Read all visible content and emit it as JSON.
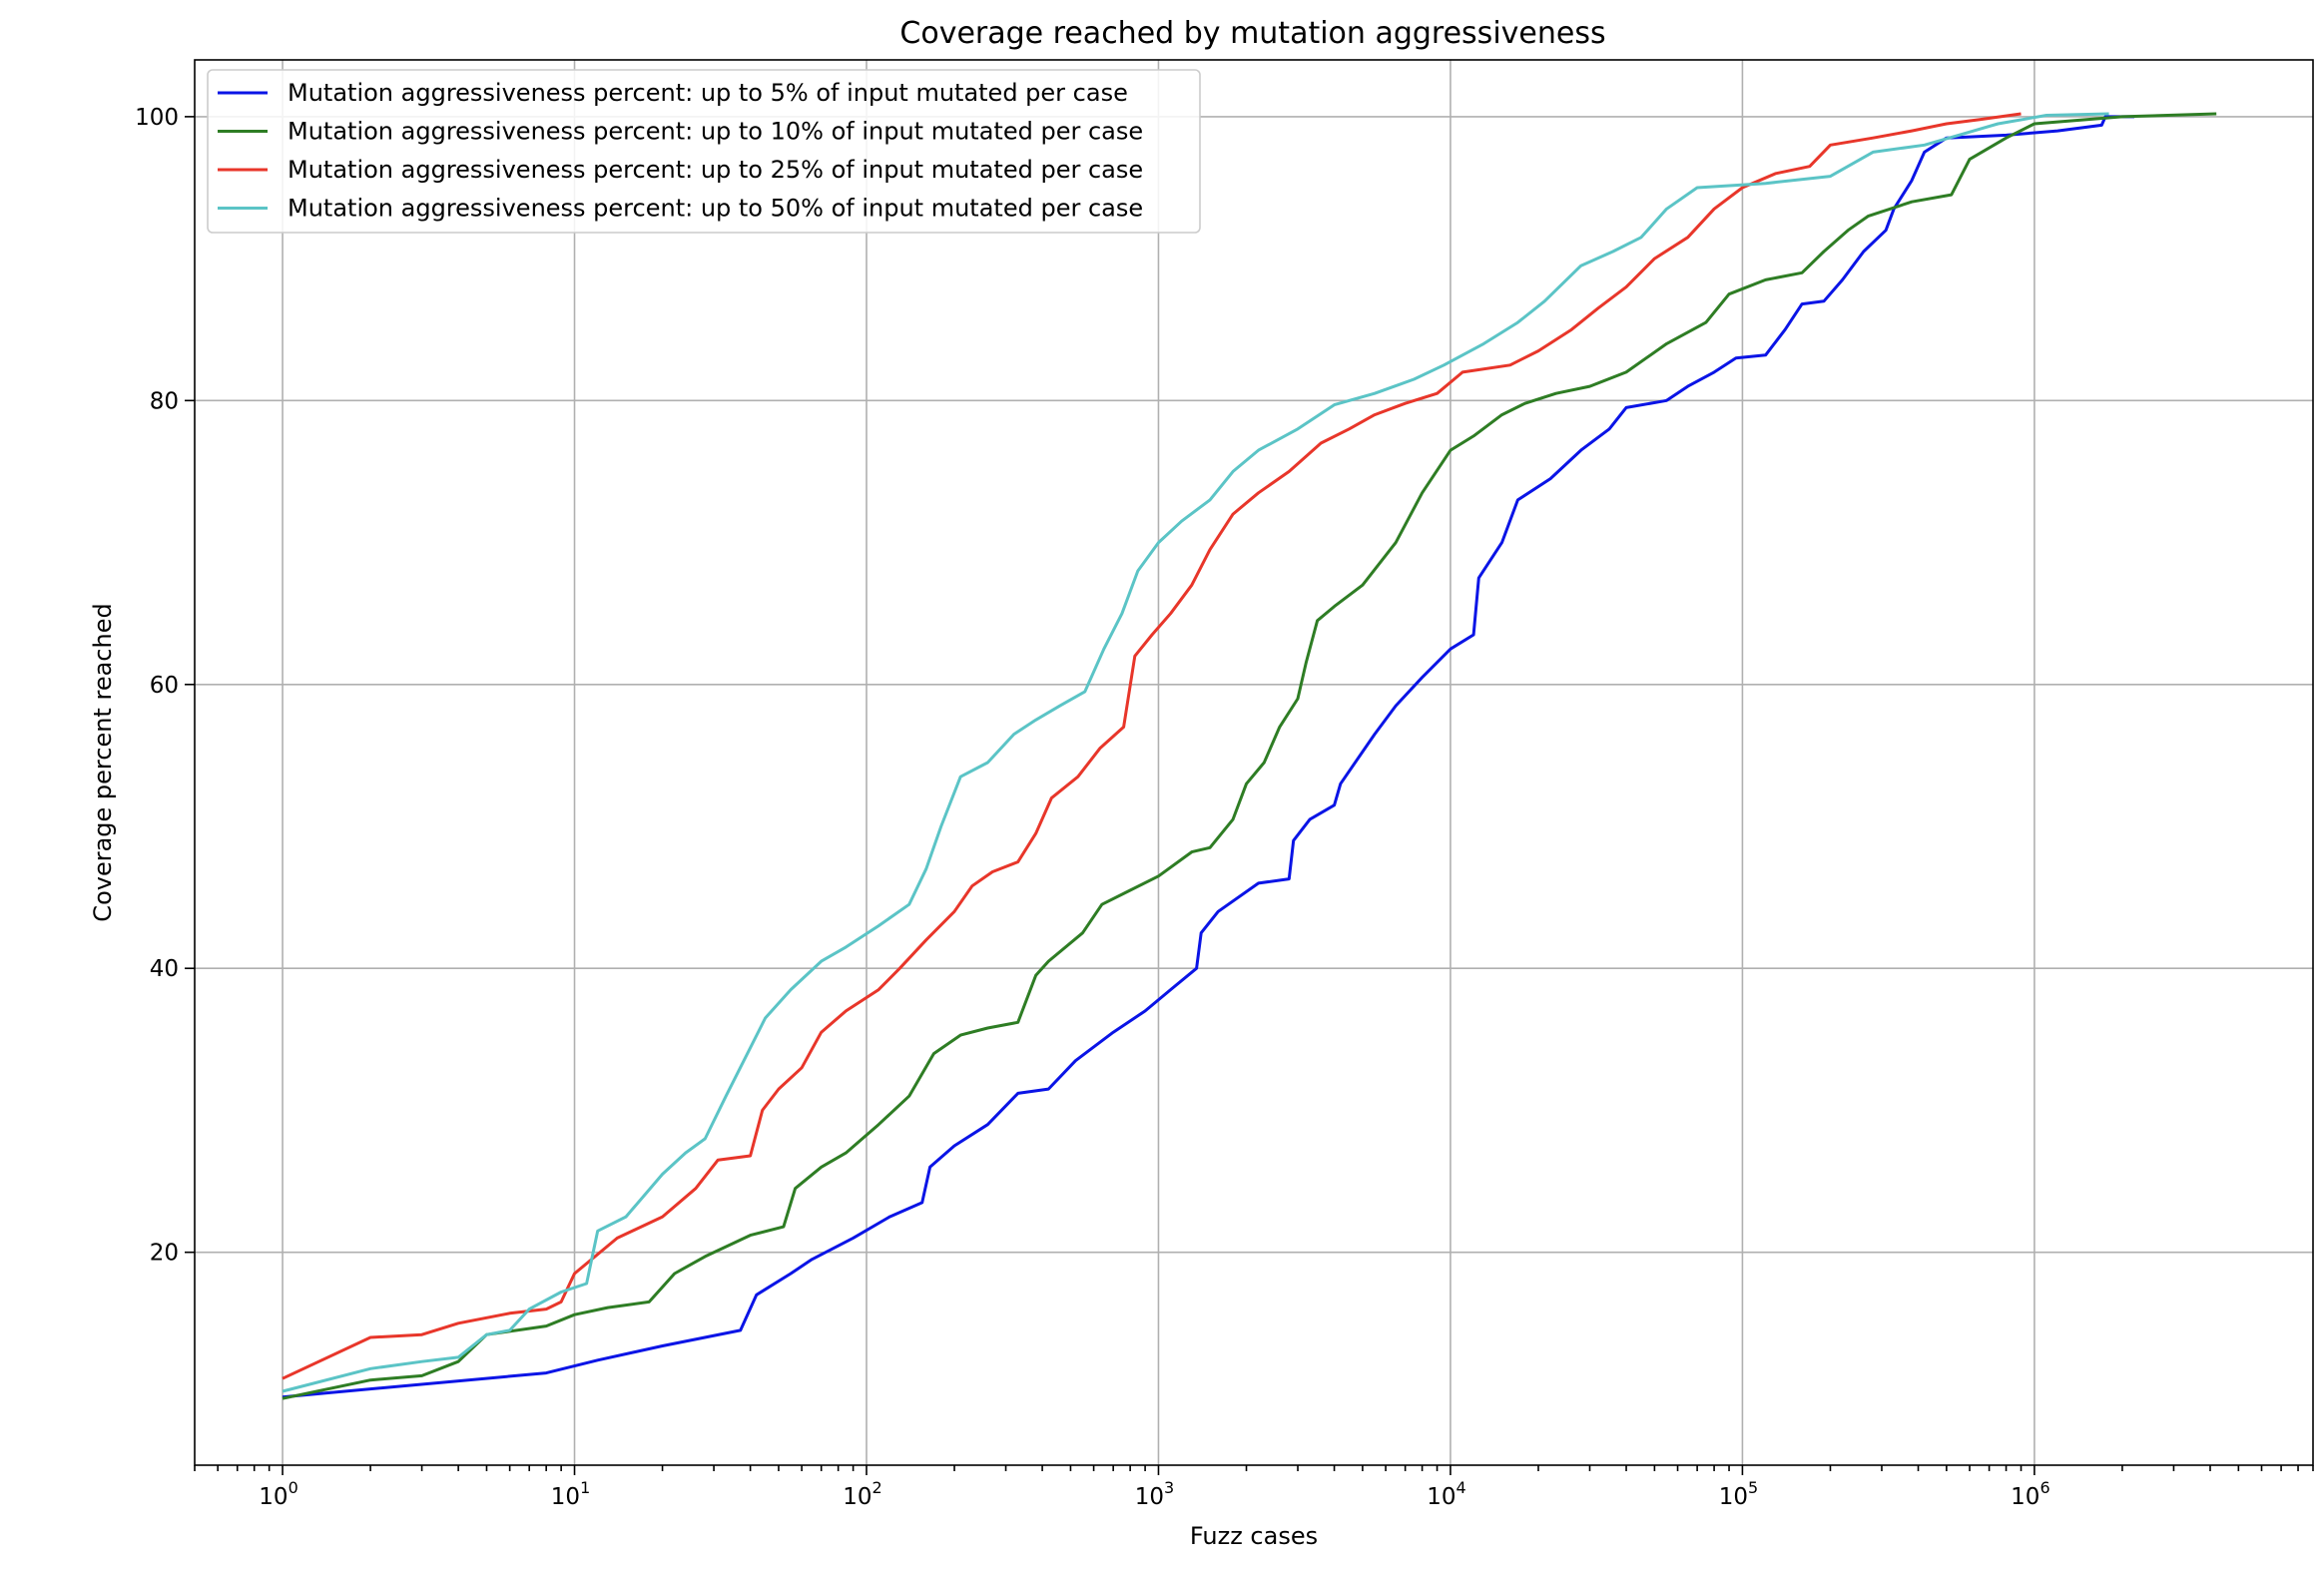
{
  "chart_data": {
    "type": "line",
    "title": "Coverage reached by mutation aggressiveness",
    "xlabel": "Fuzz cases",
    "ylabel": "Coverage percent reached",
    "xscale": "log",
    "xlim": [
      0.5,
      9000000
    ],
    "ylim": [
      5,
      104
    ],
    "xticks": [
      {
        "value": 1,
        "base": "10",
        "exp": "0"
      },
      {
        "value": 10,
        "base": "10",
        "exp": "1"
      },
      {
        "value": 100,
        "base": "10",
        "exp": "2"
      },
      {
        "value": 1000,
        "base": "10",
        "exp": "3"
      },
      {
        "value": 10000,
        "base": "10",
        "exp": "4"
      },
      {
        "value": 100000,
        "base": "10",
        "exp": "5"
      },
      {
        "value": 1000000,
        "base": "10",
        "exp": "6"
      }
    ],
    "yticks": [
      20,
      40,
      60,
      80,
      100
    ],
    "grid": true,
    "legend_position": "upper-left",
    "series": [
      {
        "name": "Mutation aggressiveness percent: up to 5% of input mutated per case",
        "color": "#0a14e6",
        "points": [
          [
            1,
            9.8
          ],
          [
            8,
            11.5
          ],
          [
            12,
            12.4
          ],
          [
            20,
            13.4
          ],
          [
            37,
            14.5
          ],
          [
            42,
            17.0
          ],
          [
            55,
            18.5
          ],
          [
            65,
            19.5
          ],
          [
            90,
            21.0
          ],
          [
            120,
            22.5
          ],
          [
            155,
            23.5
          ],
          [
            165,
            26
          ],
          [
            200,
            27.5
          ],
          [
            260,
            29
          ],
          [
            330,
            31.2
          ],
          [
            420,
            31.5
          ],
          [
            520,
            33.5
          ],
          [
            700,
            35.5
          ],
          [
            900,
            37
          ],
          [
            1100,
            38.5
          ],
          [
            1350,
            40
          ],
          [
            1400,
            42.5
          ],
          [
            1600,
            44
          ],
          [
            2200,
            46
          ],
          [
            2800,
            46.3
          ],
          [
            2900,
            49
          ],
          [
            3300,
            50.5
          ],
          [
            4000,
            51.5
          ],
          [
            4200,
            53
          ],
          [
            5500,
            56.5
          ],
          [
            6500,
            58.5
          ],
          [
            8000,
            60.5
          ],
          [
            10000,
            62.5
          ],
          [
            12000,
            63.5
          ],
          [
            12500,
            67.5
          ],
          [
            15000,
            70
          ],
          [
            17000,
            73
          ],
          [
            22000,
            74.5
          ],
          [
            28000,
            76.5
          ],
          [
            35000,
            78
          ],
          [
            40000,
            79.5
          ],
          [
            55000,
            80
          ],
          [
            65000,
            81
          ],
          [
            80000,
            82
          ],
          [
            95000,
            83
          ],
          [
            120000,
            83.2
          ],
          [
            140000,
            85
          ],
          [
            160000,
            86.8
          ],
          [
            190000,
            87
          ],
          [
            220000,
            88.5
          ],
          [
            260000,
            90.5
          ],
          [
            310000,
            92
          ],
          [
            330000,
            93.5
          ],
          [
            380000,
            95.5
          ],
          [
            420000,
            97.5
          ],
          [
            500000,
            98.5
          ],
          [
            800000,
            98.7
          ],
          [
            1200000,
            99
          ],
          [
            1700000,
            99.4
          ],
          [
            1750000,
            100
          ],
          [
            2200000,
            100
          ]
        ]
      },
      {
        "name": "Mutation aggressiveness percent: up to 10% of input mutated per case",
        "color": "#2e7d24",
        "points": [
          [
            1,
            9.7
          ],
          [
            2,
            11
          ],
          [
            3,
            11.3
          ],
          [
            4,
            12.3
          ],
          [
            5,
            14.2
          ],
          [
            8,
            14.8
          ],
          [
            10,
            15.6
          ],
          [
            13,
            16.1
          ],
          [
            18,
            16.5
          ],
          [
            22,
            18.5
          ],
          [
            28,
            19.7
          ],
          [
            40,
            21.2
          ],
          [
            52,
            21.8
          ],
          [
            57,
            24.5
          ],
          [
            70,
            26
          ],
          [
            85,
            27
          ],
          [
            110,
            29
          ],
          [
            140,
            31
          ],
          [
            170,
            34
          ],
          [
            210,
            35.3
          ],
          [
            260,
            35.8
          ],
          [
            330,
            36.2
          ],
          [
            380,
            39.5
          ],
          [
            420,
            40.5
          ],
          [
            550,
            42.5
          ],
          [
            640,
            44.5
          ],
          [
            800,
            45.5
          ],
          [
            1000,
            46.5
          ],
          [
            1300,
            48.2
          ],
          [
            1500,
            48.5
          ],
          [
            1800,
            50.5
          ],
          [
            2000,
            53
          ],
          [
            2300,
            54.5
          ],
          [
            2600,
            57
          ],
          [
            3000,
            59
          ],
          [
            3200,
            61.5
          ],
          [
            3500,
            64.5
          ],
          [
            4000,
            65.5
          ],
          [
            5000,
            67
          ],
          [
            6500,
            70
          ],
          [
            8000,
            73.5
          ],
          [
            10000,
            76.5
          ],
          [
            12000,
            77.5
          ],
          [
            15000,
            79
          ],
          [
            18000,
            79.8
          ],
          [
            23000,
            80.5
          ],
          [
            30000,
            81
          ],
          [
            40000,
            82
          ],
          [
            55000,
            84
          ],
          [
            75000,
            85.5
          ],
          [
            90000,
            87.5
          ],
          [
            120000,
            88.5
          ],
          [
            160000,
            89
          ],
          [
            190000,
            90.5
          ],
          [
            230000,
            92
          ],
          [
            270000,
            93
          ],
          [
            380000,
            94
          ],
          [
            520000,
            94.5
          ],
          [
            600000,
            97
          ],
          [
            800000,
            98.5
          ],
          [
            1000000,
            99.5
          ],
          [
            2000000,
            100
          ],
          [
            4200000,
            100.2
          ]
        ]
      },
      {
        "name": "Mutation aggressiveness percent: up to 25% of input mutated per case",
        "color": "#e8362a",
        "points": [
          [
            1,
            11.1
          ],
          [
            2,
            14
          ],
          [
            3,
            14.2
          ],
          [
            4,
            15
          ],
          [
            6,
            15.7
          ],
          [
            8,
            16
          ],
          [
            9,
            16.5
          ],
          [
            10,
            18.5
          ],
          [
            14,
            21
          ],
          [
            20,
            22.5
          ],
          [
            26,
            24.5
          ],
          [
            31,
            26.5
          ],
          [
            40,
            26.8
          ],
          [
            44,
            30
          ],
          [
            50,
            31.5
          ],
          [
            60,
            33
          ],
          [
            70,
            35.5
          ],
          [
            85,
            37
          ],
          [
            110,
            38.5
          ],
          [
            130,
            40
          ],
          [
            160,
            42
          ],
          [
            200,
            44
          ],
          [
            230,
            45.8
          ],
          [
            270,
            46.8
          ],
          [
            330,
            47.5
          ],
          [
            380,
            49.5
          ],
          [
            430,
            52
          ],
          [
            530,
            53.5
          ],
          [
            630,
            55.5
          ],
          [
            760,
            57
          ],
          [
            830,
            62
          ],
          [
            950,
            63.5
          ],
          [
            1100,
            65
          ],
          [
            1300,
            67
          ],
          [
            1500,
            69.5
          ],
          [
            1800,
            72
          ],
          [
            2200,
            73.5
          ],
          [
            2800,
            75
          ],
          [
            3600,
            77
          ],
          [
            4500,
            78
          ],
          [
            5500,
            79
          ],
          [
            7000,
            79.8
          ],
          [
            9000,
            80.5
          ],
          [
            11000,
            82
          ],
          [
            16000,
            82.5
          ],
          [
            20000,
            83.5
          ],
          [
            26000,
            85
          ],
          [
            32000,
            86.5
          ],
          [
            40000,
            88
          ],
          [
            50000,
            90
          ],
          [
            65000,
            91.5
          ],
          [
            80000,
            93.5
          ],
          [
            100000,
            95
          ],
          [
            130000,
            96
          ],
          [
            170000,
            96.5
          ],
          [
            200000,
            98
          ],
          [
            280000,
            98.5
          ],
          [
            380000,
            99
          ],
          [
            500000,
            99.5
          ],
          [
            650000,
            99.8
          ],
          [
            900000,
            100.2
          ]
        ]
      },
      {
        "name": "Mutation aggressiveness percent: up to 50% of input mutated per case",
        "color": "#5bc4c6",
        "points": [
          [
            1,
            10.2
          ],
          [
            2,
            11.8
          ],
          [
            3,
            12.3
          ],
          [
            4,
            12.6
          ],
          [
            5,
            14.2
          ],
          [
            6,
            14.5
          ],
          [
            7,
            16
          ],
          [
            9,
            17.2
          ],
          [
            11,
            17.8
          ],
          [
            12,
            21.5
          ],
          [
            15,
            22.5
          ],
          [
            20,
            25.5
          ],
          [
            24,
            27
          ],
          [
            28,
            28
          ],
          [
            33,
            31
          ],
          [
            38,
            33.5
          ],
          [
            45,
            36.5
          ],
          [
            55,
            38.5
          ],
          [
            70,
            40.5
          ],
          [
            85,
            41.5
          ],
          [
            110,
            43
          ],
          [
            140,
            44.5
          ],
          [
            160,
            47
          ],
          [
            180,
            50
          ],
          [
            210,
            53.5
          ],
          [
            260,
            54.5
          ],
          [
            320,
            56.5
          ],
          [
            380,
            57.5
          ],
          [
            460,
            58.5
          ],
          [
            560,
            59.5
          ],
          [
            650,
            62.5
          ],
          [
            750,
            65
          ],
          [
            850,
            68
          ],
          [
            1000,
            70
          ],
          [
            1200,
            71.5
          ],
          [
            1500,
            73
          ],
          [
            1800,
            75
          ],
          [
            2200,
            76.5
          ],
          [
            3000,
            78
          ],
          [
            4000,
            79.7
          ],
          [
            5500,
            80.5
          ],
          [
            7500,
            81.5
          ],
          [
            9500,
            82.5
          ],
          [
            13000,
            84
          ],
          [
            17000,
            85.5
          ],
          [
            21000,
            87
          ],
          [
            28000,
            89.5
          ],
          [
            36000,
            90.5
          ],
          [
            45000,
            91.5
          ],
          [
            55000,
            93.5
          ],
          [
            70000,
            95
          ],
          [
            120000,
            95.3
          ],
          [
            200000,
            95.8
          ],
          [
            280000,
            97.5
          ],
          [
            420000,
            98
          ],
          [
            550000,
            98.7
          ],
          [
            750000,
            99.5
          ],
          [
            1100000,
            100.1
          ],
          [
            1800000,
            100.2
          ]
        ]
      }
    ]
  }
}
